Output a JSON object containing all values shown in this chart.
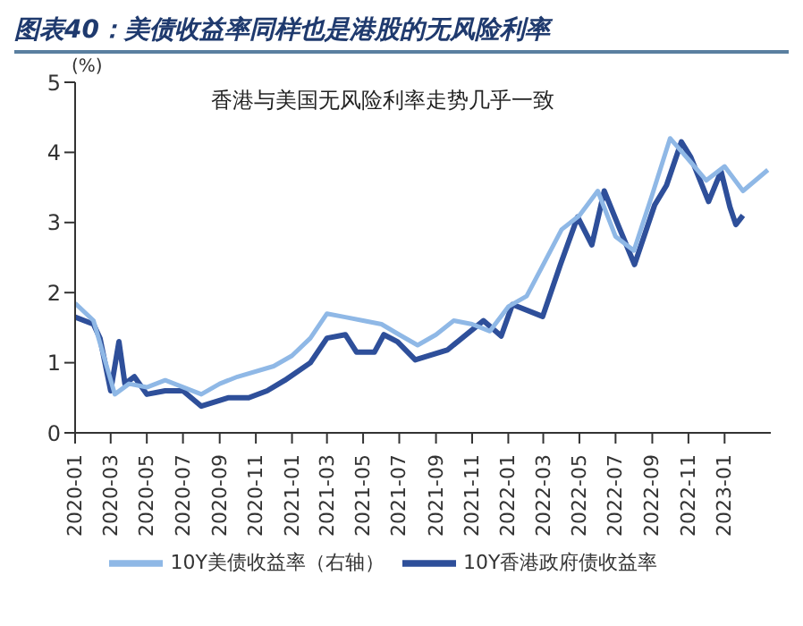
{
  "chart_data": {
    "type": "line",
    "title": "图表40：美债收益率同样也是港股的无风险利率",
    "subtitle": "香港与美国无风险利率走势几乎一致",
    "ylabel": "(%)",
    "xlim": [
      "2020-01-01",
      "2023-03-20"
    ],
    "xticks": [
      "2020-01",
      "2020-03",
      "2020-05",
      "2020-07",
      "2020-09",
      "2020-11",
      "2021-01",
      "2021-03",
      "2021-05",
      "2021-07",
      "2021-09",
      "2021-11",
      "2022-01",
      "2022-03",
      "2022-05",
      "2022-07",
      "2022-09",
      "2022-11",
      "2023-01"
    ],
    "ylim": [
      0,
      5
    ],
    "yticks": [
      0,
      1,
      2,
      3,
      4,
      5
    ],
    "grid": false,
    "legend": "bottom",
    "marker": "none",
    "line_style": "solid",
    "series": [
      {
        "name": "10Y香港政府债收益率",
        "color": "#2e4f9a",
        "x": [
          "2020-01-01",
          "2020-02-01",
          "2020-02-12",
          "2020-03-01",
          "2020-03-15",
          "2020-03-25",
          "2020-04-10",
          "2020-05-01",
          "2020-06-01",
          "2020-07-01",
          "2020-08-01",
          "2020-09-15",
          "2020-10-20",
          "2020-11-20",
          "2020-12-20",
          "2021-02-01",
          "2021-03-01",
          "2021-04-01",
          "2021-04-20",
          "2021-05-20",
          "2021-06-05",
          "2021-06-28",
          "2021-07-28",
          "2021-09-20",
          "2021-11-20",
          "2021-12-20",
          "2022-01-08",
          "2022-02-28",
          "2022-03-30",
          "2022-04-28",
          "2022-05-22",
          "2022-06-12",
          "2022-07-05",
          "2022-08-02",
          "2022-09-05",
          "2022-09-25",
          "2022-10-20",
          "2022-11-05",
          "2022-12-05",
          "2022-12-26",
          "2023-01-10",
          "2023-01-20",
          "2023-02-01"
        ],
        "values": [
          1.65,
          1.55,
          1.35,
          0.6,
          1.3,
          0.7,
          0.8,
          0.55,
          0.6,
          0.6,
          0.38,
          0.5,
          0.5,
          0.6,
          0.75,
          1.0,
          1.35,
          1.4,
          1.15,
          1.15,
          1.4,
          1.3,
          1.04,
          1.18,
          1.6,
          1.38,
          1.83,
          1.66,
          2.4,
          3.08,
          2.68,
          3.45,
          2.97,
          2.4,
          3.25,
          3.53,
          4.15,
          3.93,
          3.3,
          3.73,
          3.22,
          2.97,
          3.1
        ]
      },
      {
        "name": "10Y美债收益率（右轴）",
        "color": "#8fb8e6",
        "x": [
          "2020-01-01",
          "2020-02-01",
          "2020-03-08",
          "2020-04-01",
          "2020-05-01",
          "2020-06-01",
          "2020-08-01",
          "2020-09-01",
          "2020-10-01",
          "2020-12-01",
          "2021-01-01",
          "2021-02-01",
          "2021-03-01",
          "2021-04-01",
          "2021-05-01",
          "2021-06-01",
          "2021-07-01",
          "2021-08-01",
          "2021-09-01",
          "2021-10-01",
          "2021-11-01",
          "2021-12-01",
          "2022-01-01",
          "2022-02-01",
          "2022-03-01",
          "2022-04-01",
          "2022-05-01",
          "2022-06-01",
          "2022-07-01",
          "2022-08-01",
          "2022-09-01",
          "2022-10-01",
          "2022-11-01",
          "2022-12-01",
          "2023-01-01",
          "2023-02-01",
          "2023-03-15"
        ],
        "values": [
          1.85,
          1.6,
          0.55,
          0.7,
          0.65,
          0.75,
          0.55,
          0.7,
          0.8,
          0.95,
          1.1,
          1.35,
          1.7,
          1.65,
          1.6,
          1.55,
          1.4,
          1.25,
          1.4,
          1.6,
          1.55,
          1.45,
          1.8,
          1.95,
          2.4,
          2.9,
          3.1,
          3.45,
          2.8,
          2.6,
          3.4,
          4.2,
          3.9,
          3.6,
          3.8,
          3.45,
          3.75
        ]
      }
    ]
  }
}
